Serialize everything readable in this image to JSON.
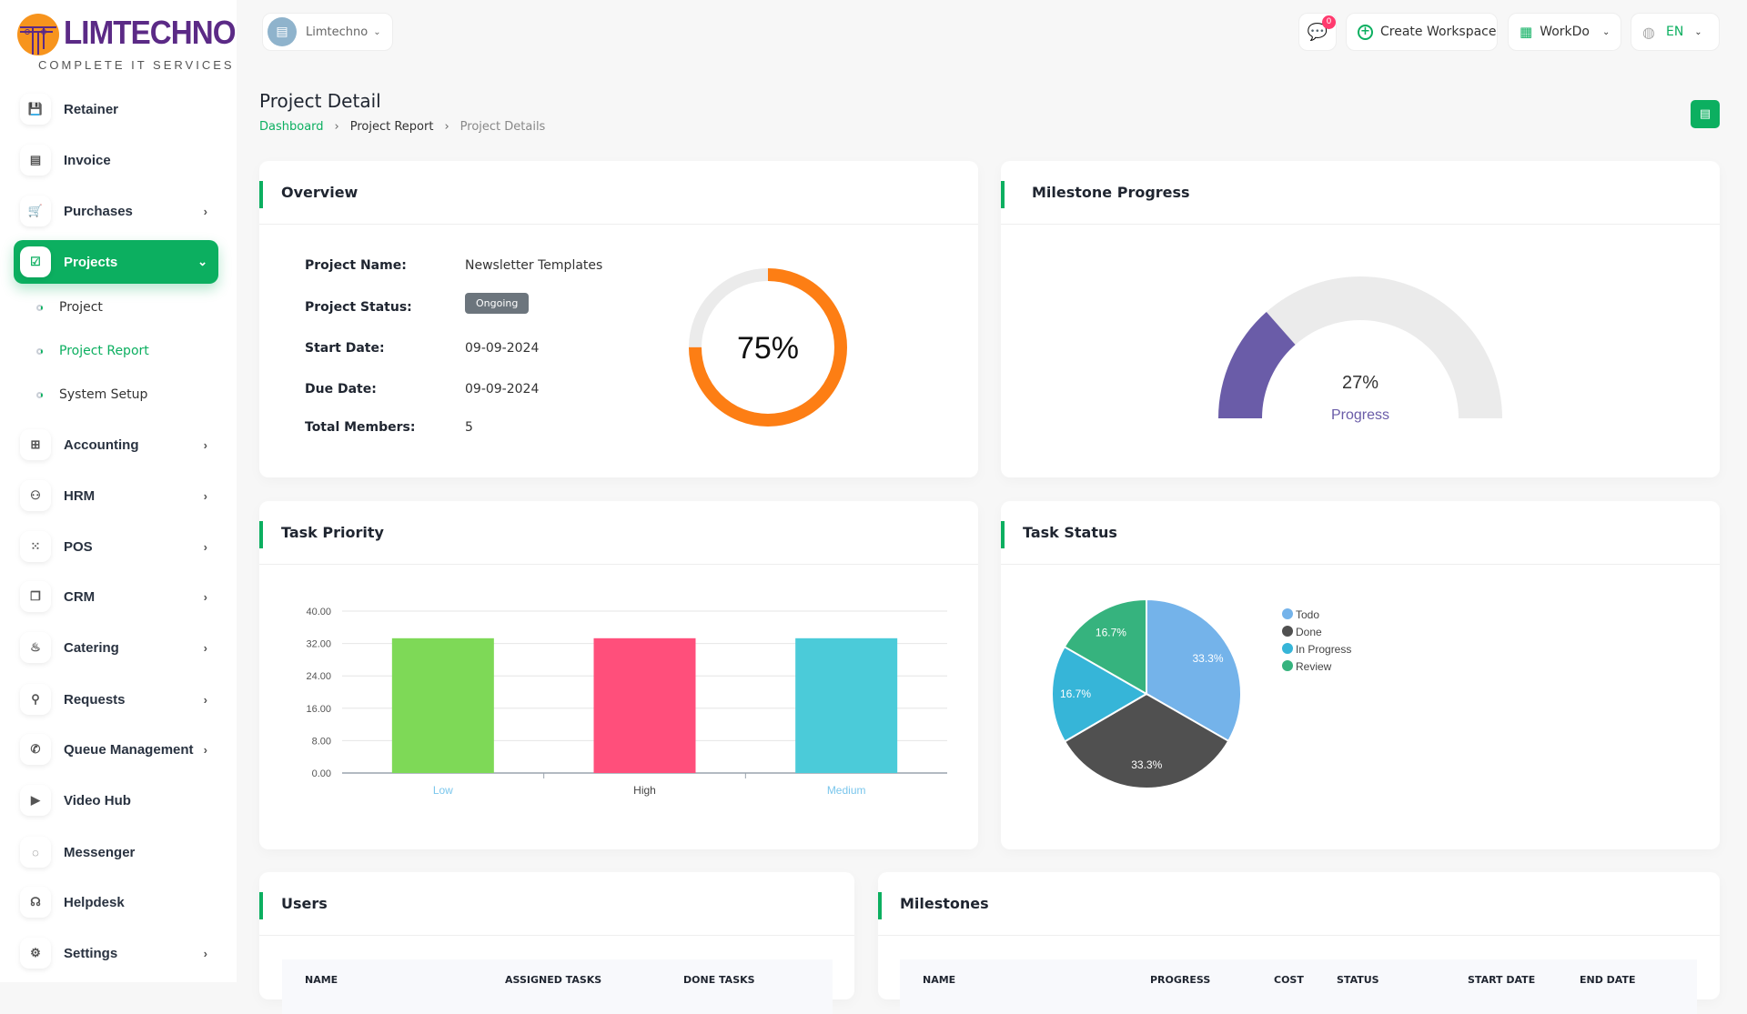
{
  "brand": {
    "name": "LIMTECHNO",
    "tagline": "COMPLETE IT SERVICES"
  },
  "workspace": {
    "name": "Limtechno"
  },
  "topbar": {
    "notifications": "0",
    "create_workspace": "Create Workspace",
    "workdo": "WorkDo",
    "language": "EN"
  },
  "sidebar": {
    "items": [
      {
        "label": "Retainer",
        "icon": "save-icon",
        "chev": false
      },
      {
        "label": "Invoice",
        "icon": "file-icon",
        "chev": false
      },
      {
        "label": "Purchases",
        "icon": "cart-icon",
        "chev": true
      },
      {
        "label": "Projects",
        "icon": "checkbox-icon",
        "chev": true,
        "active": true
      },
      {
        "label": "Accounting",
        "icon": "grid-icon",
        "chev": true
      },
      {
        "label": "HRM",
        "icon": "users-icon",
        "chev": true
      },
      {
        "label": "POS",
        "icon": "dots-grid-icon",
        "chev": true
      },
      {
        "label": "CRM",
        "icon": "layers-icon",
        "chev": true
      },
      {
        "label": "Catering",
        "icon": "chef-icon",
        "chev": true
      },
      {
        "label": "Requests",
        "icon": "user-plus-icon",
        "chev": true
      },
      {
        "label": "Queue Management",
        "icon": "phone-icon",
        "chev": true
      },
      {
        "label": "Video Hub",
        "icon": "video-icon",
        "chev": false
      },
      {
        "label": "Messenger",
        "icon": "message-icon",
        "chev": false
      },
      {
        "label": "Helpdesk",
        "icon": "headset-icon",
        "chev": false
      },
      {
        "label": "Settings",
        "icon": "gear-icon",
        "chev": true
      }
    ],
    "subitems": [
      {
        "label": "Project"
      },
      {
        "label": "Project Report",
        "active": true
      },
      {
        "label": "System Setup"
      }
    ]
  },
  "page": {
    "title": "Project Detail",
    "breadcrumb": [
      "Dashboard",
      "Project Report",
      "Project Details"
    ]
  },
  "overview": {
    "title": "Overview",
    "fields": [
      {
        "label": "Project Name:",
        "value": "Newsletter Templates"
      },
      {
        "label": "Project Status:",
        "value": "Ongoing"
      },
      {
        "label": "Start Date:",
        "value": "09-09-2024"
      },
      {
        "label": "Due Date:",
        "value": "09-09-2024"
      },
      {
        "label": "Total Members:",
        "value": "5"
      }
    ],
    "progress": 75,
    "progress_label": "75%",
    "progress_color": "#fd7e14"
  },
  "milestone": {
    "title": "Milestone Progress",
    "progress": 27,
    "value_label": "27%",
    "caption": "Progress",
    "color": "#6a5ca8"
  },
  "chart_data": [
    {
      "type": "bar",
      "title": "Task Priority",
      "categories": [
        "Low",
        "High",
        "Medium"
      ],
      "values": [
        33.3,
        33.3,
        33.3
      ],
      "colors": [
        "#7ed957",
        "#ff4f7b",
        "#4bcbd9"
      ],
      "ylim": [
        0,
        40
      ],
      "yticks": [
        "0.00",
        "8.00",
        "16.00",
        "24.00",
        "32.00",
        "40.00"
      ],
      "grid": true
    },
    {
      "type": "pie",
      "title": "Task Status",
      "labels": [
        "Todo",
        "Done",
        "In Progress",
        "Review"
      ],
      "values": [
        33.3,
        33.3,
        16.7,
        16.7
      ],
      "value_labels": [
        "33.3%",
        "33.3%",
        "16.7%",
        "16.7%"
      ],
      "colors": [
        "#74b3ea",
        "#505050",
        "#36b5d8",
        "#36b37e"
      ],
      "legend": "right"
    }
  ],
  "users": {
    "title": "Users",
    "columns": [
      "NAME",
      "ASSIGNED TASKS",
      "DONE TASKS"
    ]
  },
  "milestones": {
    "title": "Milestones",
    "columns": [
      "NAME",
      "PROGRESS",
      "COST",
      "STATUS",
      "START DATE",
      "END DATE"
    ]
  }
}
